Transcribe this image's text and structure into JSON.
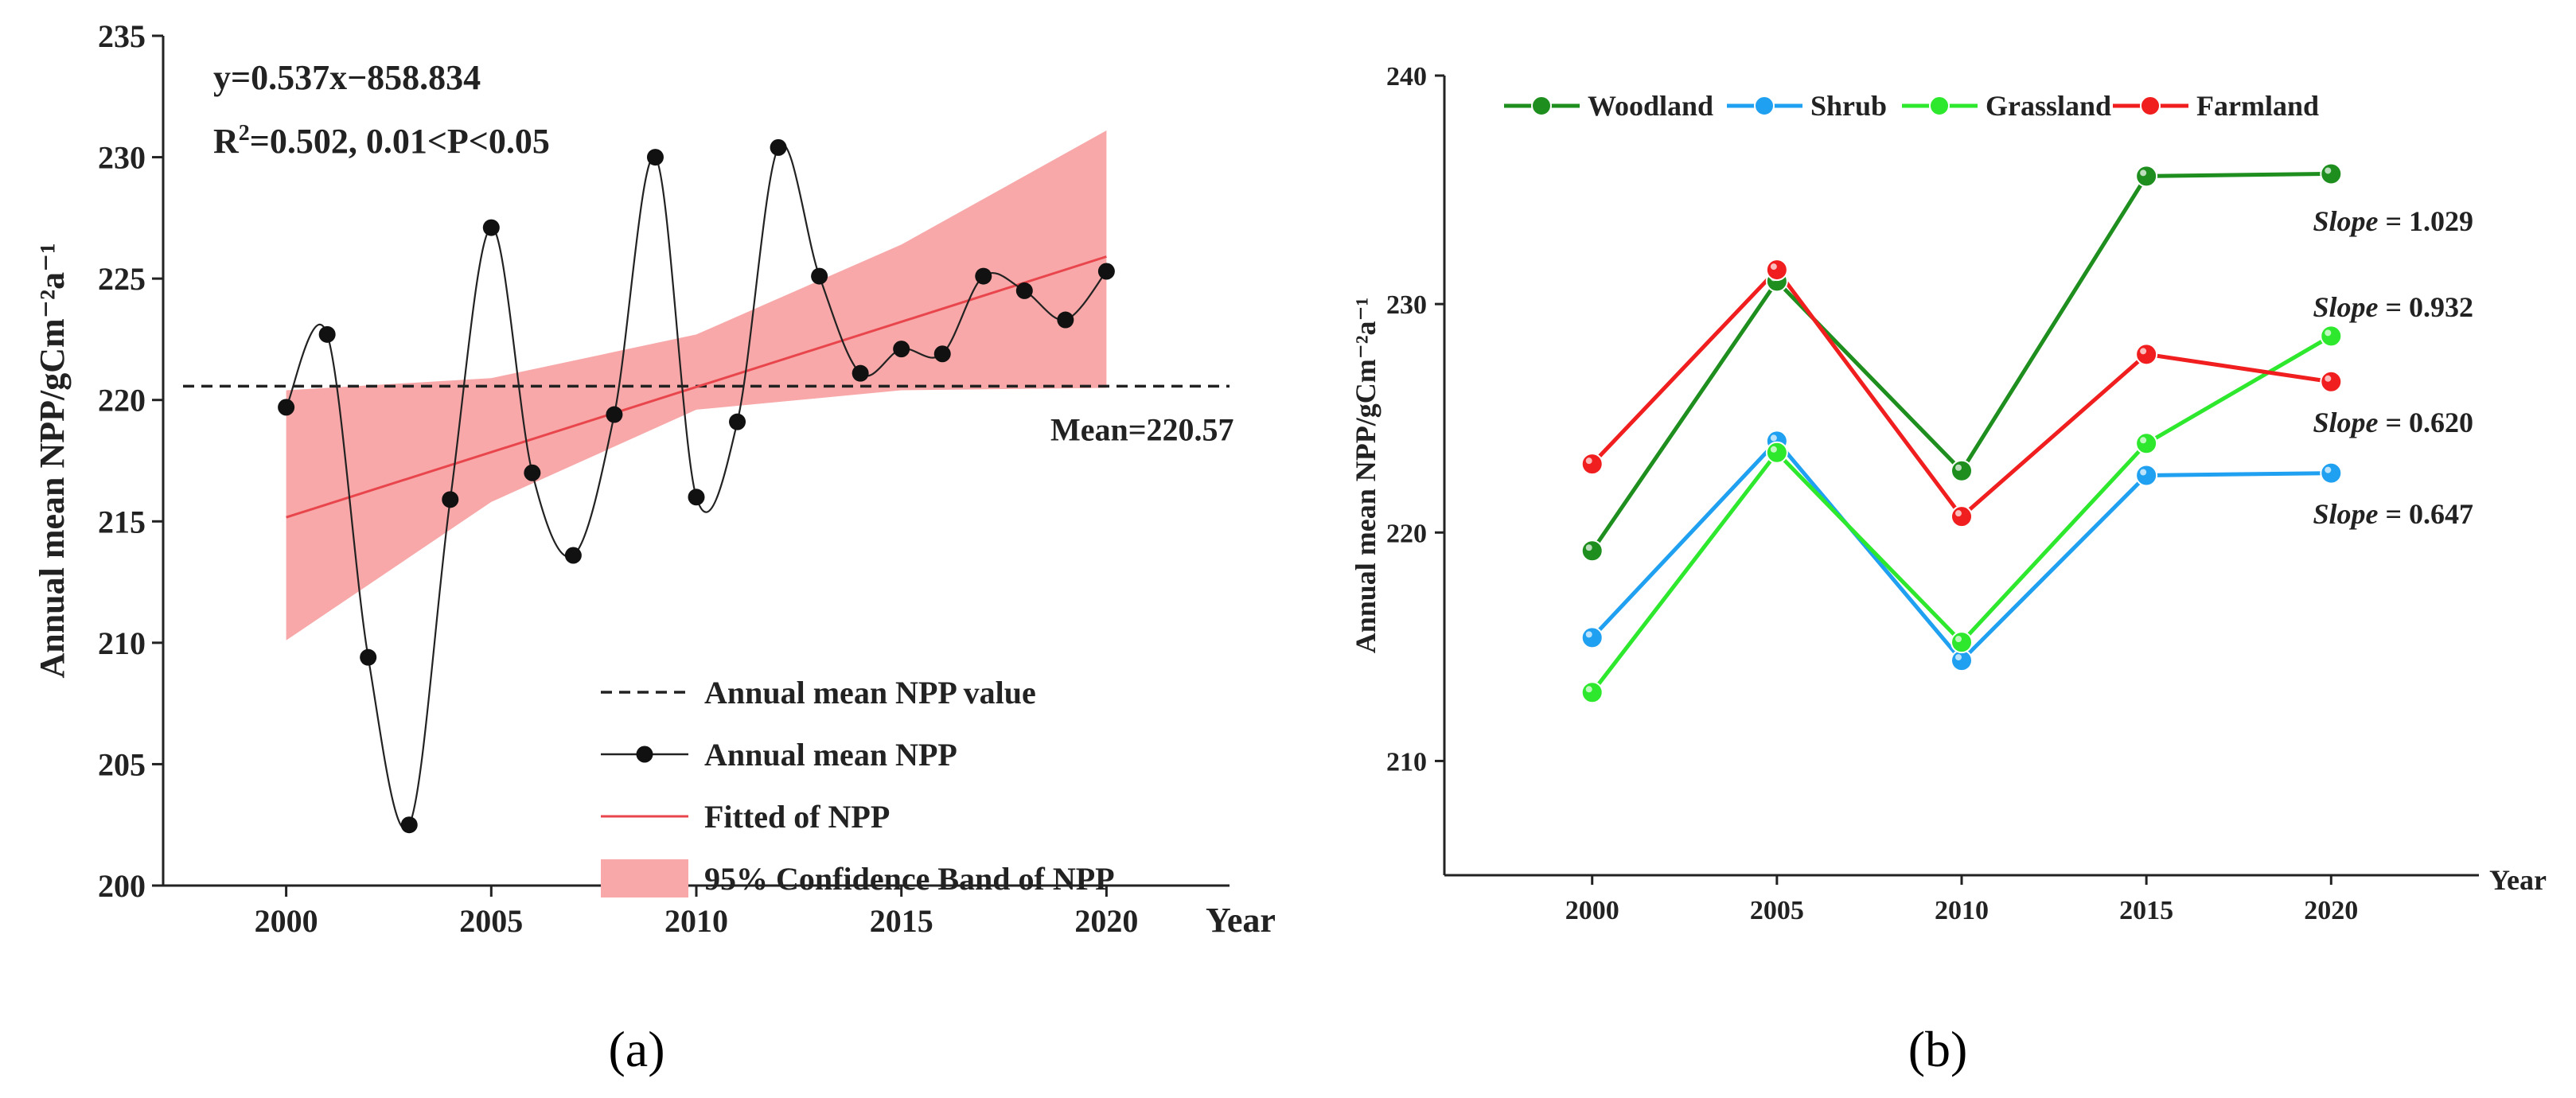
{
  "chart_data": [
    {
      "panel": "(a)",
      "type": "line",
      "ylabel": "Annual mean NPP/gCm⁻²a⁻¹",
      "xlabel": "Year",
      "xlim": [
        1997,
        2023
      ],
      "ylim": [
        200,
        235
      ],
      "x_ticks": [
        2000,
        2005,
        2010,
        2015,
        2020
      ],
      "y_ticks": [
        200,
        205,
        210,
        215,
        220,
        225,
        230,
        235
      ],
      "equation": "y=0.537x−858.834",
      "r2_text": "=0.502, 0.01<P<0.05",
      "r2_prefix": "R",
      "mean_value": 220.57,
      "mean_label": "Mean=220.57",
      "fit": {
        "slope": 0.537,
        "intercept": -858.834
      },
      "confidence_band": {
        "x": [
          2000,
          2005,
          2010,
          2015,
          2020
        ],
        "lower": [
          210.1,
          215.8,
          219.6,
          220.4,
          220.5
        ],
        "upper": [
          220.4,
          220.9,
          222.7,
          226.4,
          231.1
        ]
      },
      "series": [
        {
          "name": "Annual mean NPP",
          "x": [
            2000,
            2001,
            2002,
            2003,
            2004,
            2005,
            2006,
            2007,
            2008,
            2009,
            2010,
            2011,
            2012,
            2013,
            2014,
            2015,
            2016,
            2017,
            2018,
            2019,
            2020
          ],
          "values": [
            219.7,
            222.7,
            209.4,
            202.5,
            215.9,
            227.1,
            217.0,
            213.6,
            219.4,
            230.0,
            216.0,
            219.1,
            230.4,
            225.1,
            221.1,
            222.1,
            221.9,
            225.1,
            224.5,
            223.3,
            225.3
          ]
        }
      ],
      "legend": [
        {
          "label": "Annual mean NPP value",
          "kind": "dashed"
        },
        {
          "label": "Annual mean NPP",
          "kind": "line-dot"
        },
        {
          "label": "Fitted of  NPP",
          "kind": "red-line"
        },
        {
          "label": "95% Confidence Band of NPP",
          "kind": "band"
        }
      ],
      "colors": {
        "band": "#f8a8a8",
        "fit": "#e8464c",
        "line": "#222222",
        "dot": "#111111",
        "mean": "#222222"
      }
    },
    {
      "panel": "(b)",
      "type": "line",
      "ylabel": "Annual mean NPP/gCm⁻²a⁻¹",
      "xlabel": "Year",
      "xlim": [
        1996,
        2024
      ],
      "ylim": [
        205,
        240
      ],
      "categories": [
        2000,
        2005,
        2010,
        2015,
        2020
      ],
      "y_ticks": [
        210,
        220,
        230,
        240
      ],
      "series": [
        {
          "name": "Woodland",
          "color": "#1e8f1e",
          "values": [
            219.2,
            231.0,
            222.7,
            235.6,
            235.7
          ]
        },
        {
          "name": "Shrub",
          "color": "#1fa0f0",
          "values": [
            215.4,
            224.0,
            214.4,
            222.5,
            222.6
          ]
        },
        {
          "name": "Grassland",
          "color": "#2ee82e",
          "values": [
            213.0,
            223.5,
            215.2,
            223.9,
            228.6
          ]
        },
        {
          "name": "Farmland",
          "color": "#f01e1e",
          "values": [
            223.0,
            231.5,
            220.7,
            227.8,
            226.6
          ]
        }
      ],
      "slopes": [
        {
          "label": "Slope",
          "value": " = 1.029"
        },
        {
          "label": "Slope",
          "value": " = 0.932"
        },
        {
          "label": "Slope",
          "value": " = 0.620"
        },
        {
          "label": "Slope",
          "value": " = 0.647"
        }
      ]
    }
  ]
}
